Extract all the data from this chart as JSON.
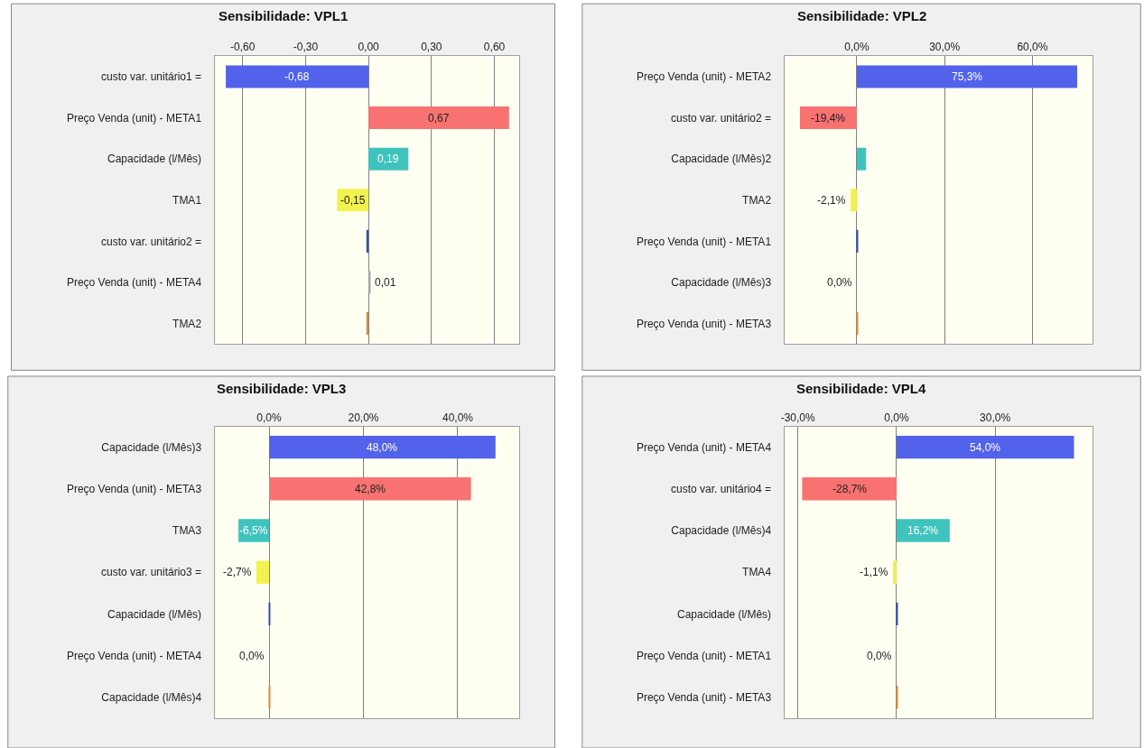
{
  "chart_data": [
    {
      "type": "bar",
      "orientation": "horizontal",
      "title": "Sensibilidade: VPL1",
      "grid": "x",
      "categories": [
        "custo var. unitário1 =",
        "Preço Venda (unit) - META1",
        "Capacidade (l/Mês)",
        "TMA1",
        "custo var. unitário2 =",
        "Preço Venda (unit) - META4",
        "TMA2"
      ],
      "values": [
        -0.68,
        0.67,
        0.19,
        -0.15,
        -0.01,
        0.01,
        -0.01
      ],
      "value_labels": [
        "-0,68",
        "0,67",
        "0,19",
        "-0,15",
        null,
        "0,01",
        null
      ],
      "colors": [
        "#5262ea",
        "#f87272",
        "#3fc4bd",
        "#f2f24e",
        "#2f4fa8",
        "#a8a8a8",
        "#e0883a"
      ],
      "xlim": [
        -0.73,
        0.72
      ],
      "xticks": [
        {
          "value": -0.6,
          "label": "-0,60"
        },
        {
          "value": -0.3,
          "label": "-0,30"
        },
        {
          "value": 0,
          "label": "0,00"
        },
        {
          "value": 0.3,
          "label": "0,30"
        },
        {
          "value": 0.6,
          "label": "0,60"
        }
      ]
    },
    {
      "type": "bar",
      "orientation": "horizontal",
      "title": "Sensibilidade: VPL2",
      "grid": "x",
      "categories": [
        "Preço Venda (unit) - META2",
        "custo var. unitário2 =",
        "Capacidade (l/Mês)2",
        "TMA2",
        "Preço Venda (unit) - META1",
        "Capacidade (l/Mês)3",
        "Preço Venda (unit) - META3"
      ],
      "values": [
        75.3,
        -19.4,
        3.2,
        -2.1,
        0.3,
        0.0,
        0.3
      ],
      "value_labels": [
        "75,3%",
        "-19,4%",
        null,
        "-2,1%",
        null,
        "0,0%",
        null
      ],
      "colors": [
        "#5262ea",
        "#f87272",
        "#3fc4bd",
        "#f2f24e",
        "#2f4fa8",
        "#a8a8a8",
        "#e0883a"
      ],
      "xlim": [
        -24.5,
        80.6
      ],
      "xticks": [
        {
          "value": 0,
          "label": "0,0%"
        },
        {
          "value": 30,
          "label": "30,0%"
        },
        {
          "value": 60,
          "label": "60,0%"
        }
      ]
    },
    {
      "type": "bar",
      "orientation": "horizontal",
      "title": "Sensibilidade: VPL3",
      "grid": "x",
      "categories": [
        "Capacidade (l/Mês)3",
        "Preço Venda (unit) - META3",
        "TMA3",
        "custo var. unitário3 =",
        "Capacidade (l/Mês)",
        "Preço Venda (unit) - META4",
        "Capacidade (l/Mês)4"
      ],
      "values": [
        48.0,
        42.8,
        -6.5,
        -2.7,
        0.2,
        0.0,
        0.2
      ],
      "value_labels": [
        "48,0%",
        "42,8%",
        "-6,5%",
        "-2,7%",
        null,
        "0,0%",
        null
      ],
      "colors": [
        "#5262ea",
        "#f87272",
        "#3fc4bd",
        "#f2f24e",
        "#2f4fa8",
        "#a8a8a8",
        "#e0883a"
      ],
      "xlim": [
        -11.4,
        53.1
      ],
      "xticks": [
        {
          "value": 0,
          "label": "0,0%"
        },
        {
          "value": 20,
          "label": "20,0%"
        },
        {
          "value": 40,
          "label": "40,0%"
        }
      ]
    },
    {
      "type": "bar",
      "orientation": "horizontal",
      "title": "Sensibilidade: VPL4",
      "grid": "x",
      "categories": [
        "Preço Venda (unit) - META4",
        "custo var. unitário4 =",
        "Capacidade (l/Mês)4",
        "TMA4",
        "Capacidade (l/Mês)",
        "Preço Venda (unit) - META1",
        "Preço Venda (unit) - META3"
      ],
      "values": [
        54.0,
        -28.7,
        16.2,
        -1.1,
        0.3,
        0.0,
        0.3
      ],
      "value_labels": [
        "54,0%",
        "-28,7%",
        "16,2%",
        "-1,1%",
        null,
        "0,0%",
        null
      ],
      "colors": [
        "#5262ea",
        "#f87272",
        "#3fc4bd",
        "#f2f24e",
        "#2f4fa8",
        "#a8a8a8",
        "#e0883a"
      ],
      "xlim": [
        -33.9,
        59.7
      ],
      "xticks": [
        {
          "value": -30,
          "label": "-30,0%"
        },
        {
          "value": 0,
          "label": "0,0%"
        },
        {
          "value": 30,
          "label": "30,0%"
        }
      ]
    }
  ]
}
